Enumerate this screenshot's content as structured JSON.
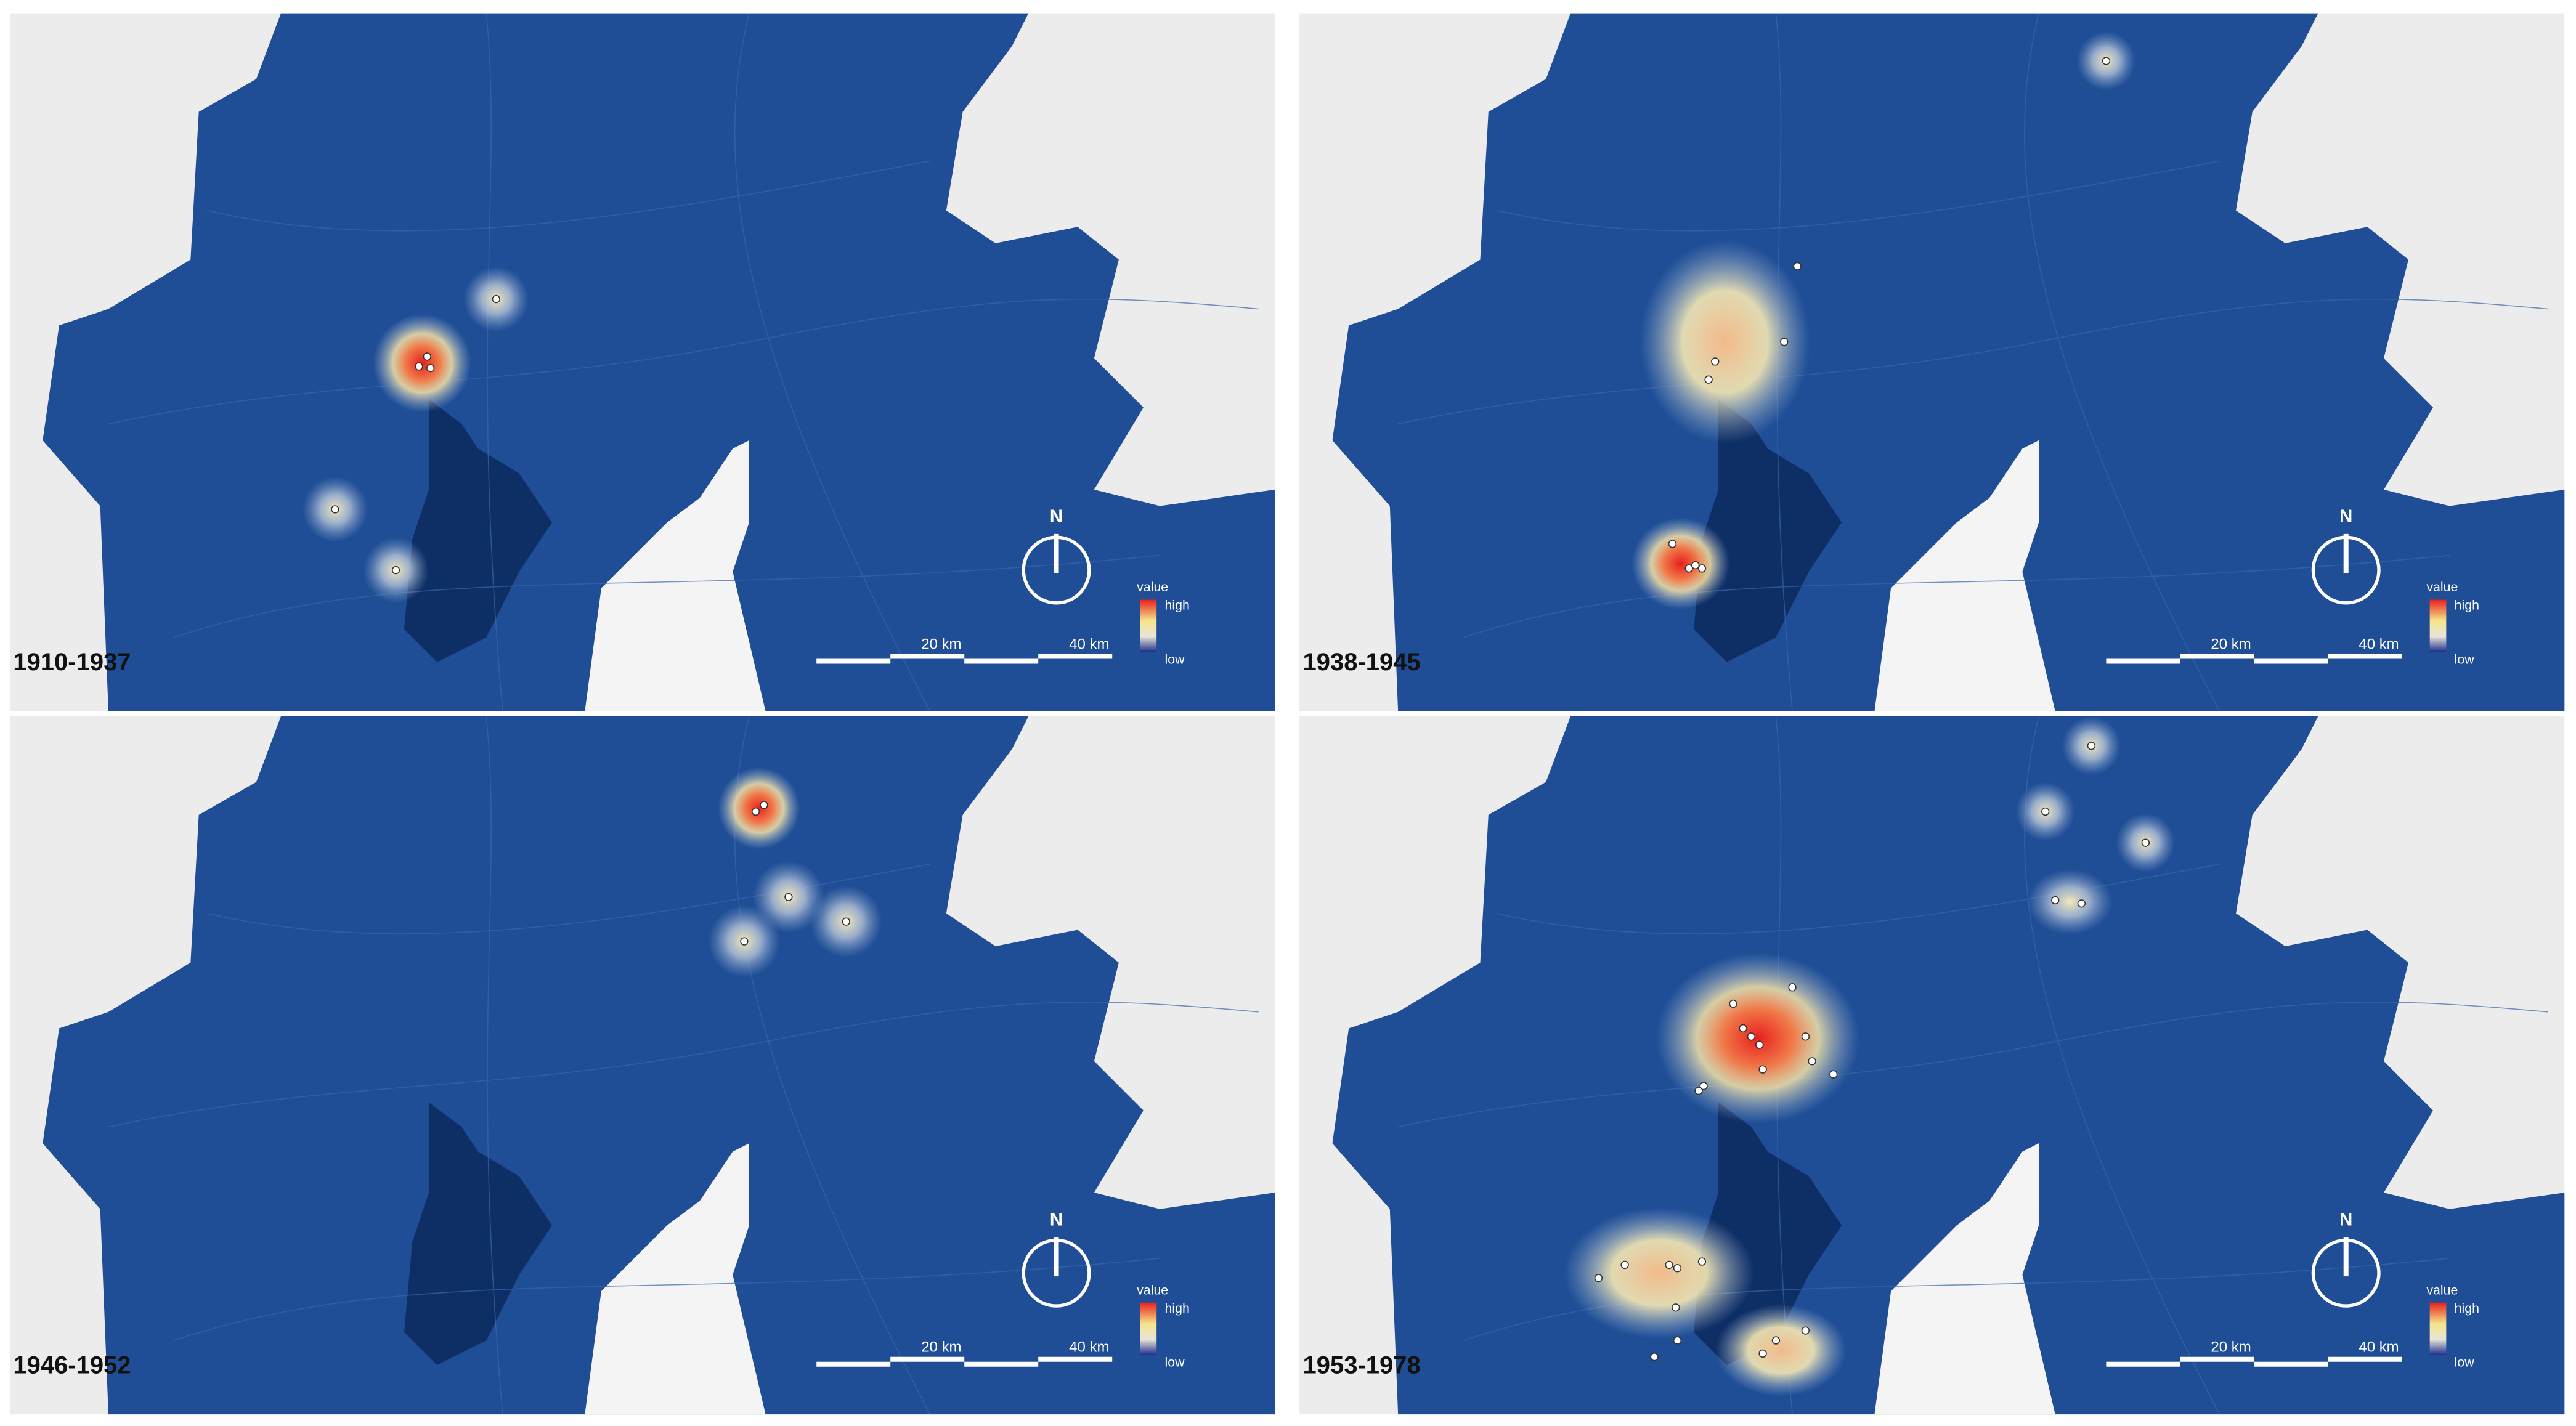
{
  "panels": [
    {
      "period": "1910-1937"
    },
    {
      "period": "1938-1945"
    },
    {
      "period": "1946-1952"
    },
    {
      "period": "1953-1978"
    }
  ],
  "legend": {
    "title": "value",
    "high": "high",
    "low": "low"
  },
  "north": "N",
  "scale": {
    "short": "20 km",
    "long": "40 km"
  }
}
